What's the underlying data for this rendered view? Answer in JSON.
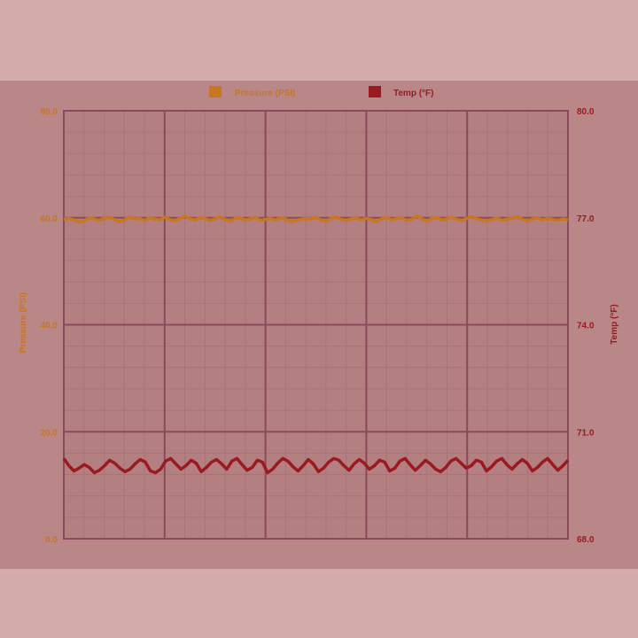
{
  "colors": {
    "background": "#d4abab",
    "panel": "#b98787",
    "plot_bg": "#b47f80",
    "grid_major": "#8b4a5b",
    "grid_minor": "#a87478",
    "pressure": "#c8761f",
    "temp": "#9b1a20"
  },
  "chart_data": {
    "type": "line",
    "title": "",
    "legend_position": "top-center",
    "grid": true,
    "x": {
      "range": [
        0,
        100
      ],
      "tick_labels": []
    },
    "y_left": {
      "label": "Pressure (PSI)",
      "range": [
        0,
        80
      ],
      "ticks": [
        "0.0",
        "20.0",
        "40.0",
        "60.0",
        "80.0"
      ]
    },
    "y_right": {
      "label": "Temp (°F)",
      "range": [
        68,
        80
      ],
      "ticks": [
        "68.0",
        "71.0",
        "74.0",
        "77.0",
        "80.0"
      ]
    },
    "series": [
      {
        "name": "Pressure (PSI)",
        "axis": "left",
        "color": "#c8761f",
        "values": [
          59.7,
          59.9,
          59.6,
          59.2,
          59.4,
          60.0,
          59.8,
          59.5,
          59.9,
          60.1,
          59.7,
          59.3,
          59.6,
          60.2,
          59.8,
          59.9,
          59.5,
          60.0,
          59.8,
          59.6,
          60.1,
          59.7,
          59.4,
          59.9,
          60.3,
          59.8,
          59.6,
          60.0,
          59.9,
          59.5,
          59.8,
          60.2,
          59.7,
          59.4,
          59.9,
          60.0,
          59.6,
          59.8,
          60.1,
          59.5,
          59.7,
          59.9,
          59.6,
          60.0,
          59.8,
          59.3,
          59.5,
          59.7,
          59.9,
          59.8,
          60.1,
          59.6,
          59.4,
          59.9,
          60.2,
          59.7,
          59.5,
          59.8,
          60.0,
          59.6,
          59.9,
          59.7,
          59.3,
          59.8,
          60.1,
          59.6,
          59.9,
          60.0,
          59.5,
          59.7,
          60.3,
          59.8,
          59.4,
          59.9,
          60.0,
          59.6,
          59.8,
          60.1,
          59.7,
          59.5,
          59.9,
          60.2,
          59.8,
          59.6,
          59.4,
          59.7,
          60.0,
          59.5,
          59.8,
          59.9,
          60.2,
          59.7,
          59.4,
          59.8,
          60.0,
          59.6,
          59.9,
          59.7,
          59.5,
          59.8,
          59.6
        ],
        "values_x_step": 1
      },
      {
        "name": "Temp (°F)",
        "axis": "right",
        "color": "#9b1a20",
        "values": [
          70.25,
          70.05,
          69.9,
          69.98,
          70.08,
          70.0,
          69.85,
          69.92,
          70.05,
          70.2,
          70.12,
          69.98,
          69.88,
          69.95,
          70.1,
          70.22,
          70.15,
          69.9,
          69.85,
          69.95,
          70.18,
          70.25,
          70.1,
          69.95,
          70.05,
          70.2,
          70.12,
          69.88,
          70.0,
          70.15,
          70.22,
          70.1,
          69.95,
          70.18,
          70.25,
          70.08,
          69.92,
          70.0,
          70.2,
          70.15,
          69.85,
          69.95,
          70.12,
          70.25,
          70.18,
          70.02,
          69.9,
          70.05,
          70.22,
          70.1,
          69.88,
          69.98,
          70.15,
          70.25,
          70.2,
          70.05,
          69.92,
          70.1,
          70.22,
          70.12,
          69.95,
          70.05,
          70.2,
          70.15,
          69.9,
          69.98,
          70.18,
          70.25,
          70.08,
          69.92,
          70.05,
          70.2,
          70.1,
          69.95,
          69.88,
          70.0,
          70.18,
          70.25,
          70.12,
          69.98,
          70.05,
          70.2,
          70.15,
          69.9,
          70.02,
          70.18,
          70.25,
          70.08,
          69.95,
          70.1,
          70.22,
          70.12,
          69.9,
          70.0,
          70.15,
          70.25,
          70.08,
          69.92,
          70.05,
          70.2
        ],
        "values_x_step": 1
      }
    ]
  }
}
